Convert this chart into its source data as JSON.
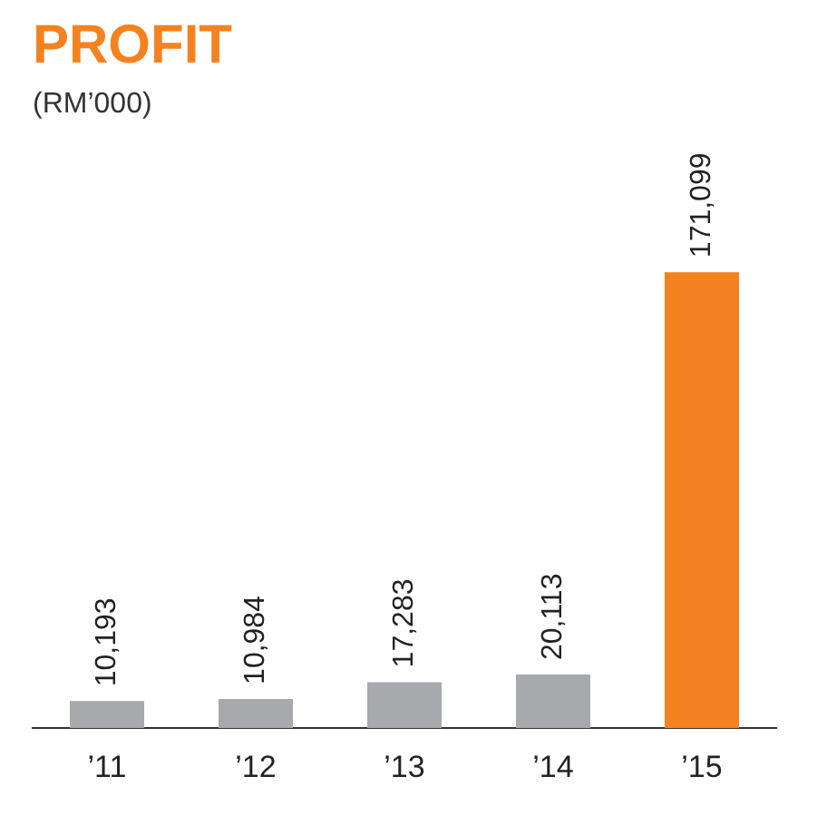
{
  "chart_data": {
    "type": "bar",
    "title": "PROFIT",
    "subtitle": "(RM’000)",
    "categories": [
      "’11",
      "’12",
      "’13",
      "’14",
      "’15"
    ],
    "values": [
      10193,
      10984,
      17283,
      20113,
      171099
    ],
    "colors": [
      "#a7a9ac",
      "#a7a9ac",
      "#a7a9ac",
      "#a7a9ac",
      "#f58220"
    ],
    "value_labels": [
      "10,193",
      "10,984",
      "17,283",
      "20,113",
      "171,099"
    ],
    "grid": false,
    "legend": false
  }
}
